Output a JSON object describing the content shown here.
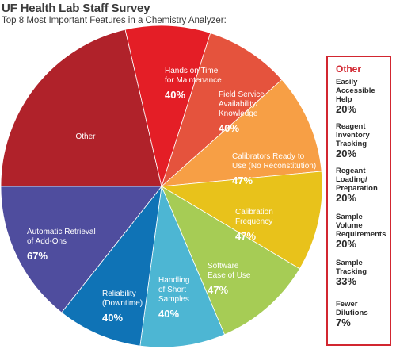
{
  "title": "UF Health Lab Staff Survey",
  "subtitle": "Top 8 Most Important Features in a Chemistry Analyzer:",
  "colors": {
    "other": "#b0222a",
    "hands_on": "#e41e26",
    "field_service": "#e5533d",
    "calibrators": "#f79f45",
    "calibration_freq": "#e8c21b",
    "software": "#a6cc55",
    "handling": "#4db6d3",
    "reliability": "#0f73b6",
    "retrieval": "#4f4d9e",
    "box_border": "#d22630",
    "text_dark": "#2a2a2a"
  },
  "chart_data": {
    "type": "pie",
    "title": "UF Health Lab Staff Survey",
    "subtitle": "Top 8 Most Important Features in a Chemistry Analyzer:",
    "slices": [
      {
        "label": "Other",
        "value_label": "",
        "weight": 100,
        "color_key": "other"
      },
      {
        "label": "Hands on Time for Maintenance",
        "value_label": "40%",
        "weight": 40,
        "color_key": "hands_on"
      },
      {
        "label": "Field Service Availability/ Knowledge",
        "value_label": "40%",
        "weight": 40,
        "color_key": "field_service"
      },
      {
        "label": "Calibrators Ready to Use (No Reconstitution)",
        "value_label": "47%",
        "weight": 47,
        "color_key": "calibrators"
      },
      {
        "label": "Calibration Frequency",
        "value_label": "47%",
        "weight": 47,
        "color_key": "calibration_freq"
      },
      {
        "label": "Software Ease of Use",
        "value_label": "47%",
        "weight": 47,
        "color_key": "software"
      },
      {
        "label": "Handling of Short Samples",
        "value_label": "40%",
        "weight": 40,
        "color_key": "handling"
      },
      {
        "label": "Reliability (Downtime)",
        "value_label": "40%",
        "weight": 40,
        "color_key": "reliability"
      },
      {
        "label": "Automatic Retrieval of Add-Ons",
        "value_label": "67%",
        "weight": 67,
        "color_key": "retrieval"
      }
    ]
  },
  "other_box": {
    "title": "Other",
    "items": [
      {
        "label": "Easily Accessible Help",
        "value": "20%"
      },
      {
        "label": "Reagent Inventory Tracking",
        "value": "20%"
      },
      {
        "label": "Regeant Loading/ Preparation",
        "value": "20%"
      },
      {
        "label": "Sample Volume Requirements",
        "value": "20%"
      },
      {
        "label": "Sample Tracking",
        "value": "33%"
      },
      {
        "label": "Fewer Dilutions",
        "value": "7%"
      }
    ]
  }
}
